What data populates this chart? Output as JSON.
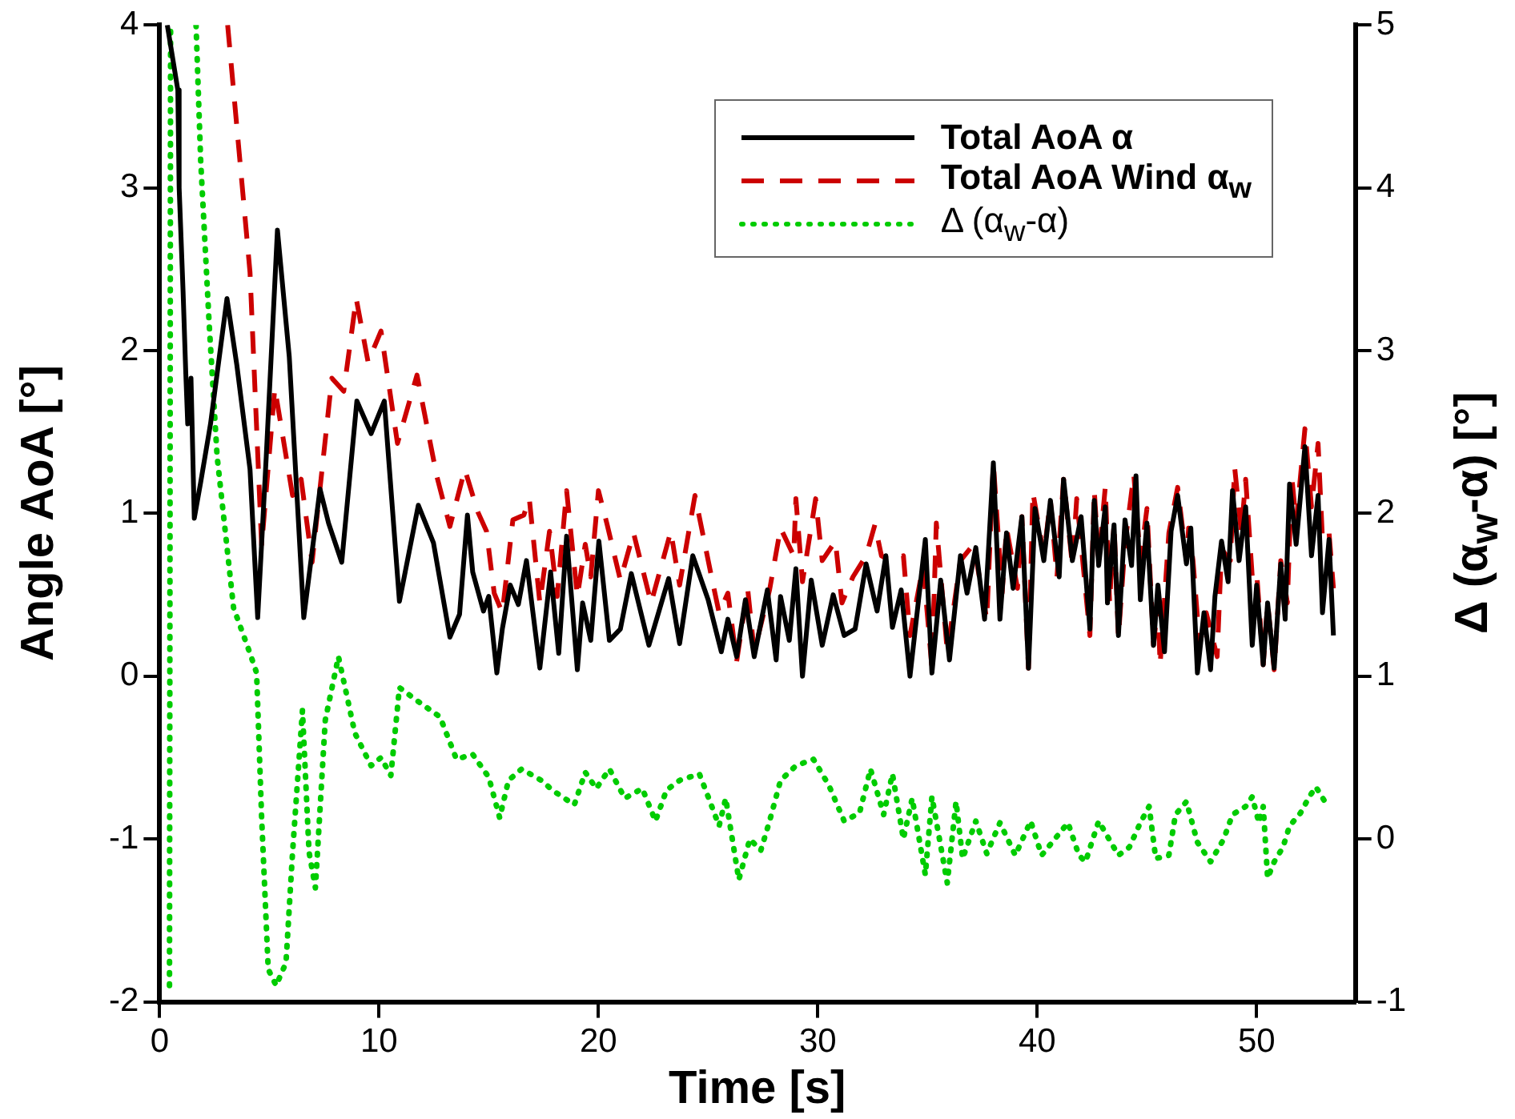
{
  "chart_data": {
    "type": "line",
    "xlabel": "Time [s]",
    "ylabel": "Angle AoA [°]",
    "y2label": "Δ (α$_{w}$-α) [°]",
    "xlim": [
      0,
      54.5
    ],
    "xticks": [
      0,
      10,
      20,
      30,
      40,
      50
    ],
    "ylim": [
      -2,
      4
    ],
    "yticks": [
      -2,
      -1,
      0,
      1,
      2,
      3,
      4
    ],
    "y2lim": [
      -1,
      5
    ],
    "y2ticks": [
      -1,
      0,
      1,
      2,
      3,
      4,
      5
    ],
    "legend": "top right",
    "series": [
      {
        "name": "Total AoA α",
        "color": "#000000",
        "line_style": "solid",
        "axis": "y",
        "x": [
          0.35,
          0.83,
          0.89,
          1.07,
          1.19,
          1.28,
          1.43,
          1.58,
          1.87,
          2.32,
          3.07,
          3.52,
          4.12,
          4.47,
          4.86,
          5.37,
          5.91,
          6.57,
          7.31,
          7.7,
          8.3,
          8.99,
          9.64,
          10.24,
          10.93,
          11.79,
          12.48,
          13.23,
          13.67,
          14.03,
          14.27,
          14.76,
          15.0,
          15.37,
          15.62,
          15.98,
          16.35,
          16.72,
          17.33,
          17.82,
          18.19,
          18.55,
          19.04,
          19.28,
          19.65,
          20.02,
          20.5,
          21.0,
          21.5,
          22.3,
          23.2,
          23.7,
          24.3,
          25.0,
          25.6,
          25.9,
          26.3,
          26.7,
          27.1,
          27.7,
          28.1,
          28.3,
          28.7,
          29.0,
          29.3,
          29.7,
          30.2,
          30.7,
          31.2,
          31.7,
          32.2,
          32.7,
          33.1,
          33.4,
          33.8,
          34.2,
          34.9,
          35.2,
          35.6,
          36.0,
          36.5,
          36.8,
          37.2,
          37.6,
          38.0,
          38.3,
          38.6,
          38.9,
          39.3,
          39.6,
          39.9,
          40.3,
          40.6,
          41.0,
          41.2,
          41.6,
          42.0,
          42.4,
          42.6,
          42.8,
          43.1,
          43.2,
          43.5,
          43.7,
          44.0,
          44.3,
          44.5,
          44.7,
          45.0,
          45.3,
          45.5,
          45.8,
          46.1,
          46.4,
          46.8,
          47.0,
          47.3,
          47.6,
          47.9,
          48.1,
          48.4,
          48.7,
          48.9,
          49.2,
          49.5,
          49.8,
          50.0,
          50.3,
          50.5,
          50.8,
          51.1,
          51.3,
          51.5,
          51.8,
          52.2,
          52.5,
          52.8,
          53.0,
          53.3,
          53.5
        ],
        "values": [
          4.0,
          3.6,
          3.0,
          2.36,
          1.87,
          1.55,
          1.83,
          0.97,
          1.19,
          1.55,
          2.32,
          1.91,
          1.27,
          0.36,
          1.35,
          2.74,
          1.96,
          0.36,
          1.15,
          0.94,
          0.7,
          1.69,
          1.49,
          1.69,
          0.46,
          1.05,
          0.82,
          0.24,
          0.38,
          0.99,
          0.64,
          0.4,
          0.49,
          0.02,
          0.29,
          0.56,
          0.44,
          0.71,
          0.05,
          0.64,
          0.14,
          0.86,
          0.04,
          0.45,
          0.22,
          0.83,
          0.22,
          0.29,
          0.63,
          0.19,
          0.6,
          0.2,
          0.74,
          0.47,
          0.15,
          0.35,
          0.12,
          0.47,
          0.12,
          0.53,
          0.1,
          0.49,
          0.22,
          0.66,
          0.0,
          0.59,
          0.19,
          0.5,
          0.25,
          0.29,
          0.69,
          0.4,
          0.74,
          0.3,
          0.53,
          0.0,
          0.84,
          0.02,
          0.59,
          0.1,
          0.74,
          0.51,
          0.79,
          0.35,
          1.31,
          0.35,
          0.88,
          0.54,
          0.98,
          0.05,
          1.03,
          0.71,
          1.08,
          0.61,
          1.21,
          0.71,
          0.98,
          0.29,
          1.08,
          0.68,
          1.04,
          0.45,
          0.93,
          0.25,
          0.96,
          0.68,
          1.23,
          0.47,
          0.94,
          0.19,
          0.56,
          0.15,
          0.89,
          1.11,
          0.69,
          0.91,
          0.02,
          0.39,
          0.04,
          0.49,
          0.83,
          0.58,
          1.14,
          0.71,
          1.04,
          0.19,
          0.56,
          0.07,
          0.45,
          0.05,
          0.69,
          0.35,
          1.18,
          0.81,
          1.41,
          0.74,
          1.11,
          0.39,
          0.84,
          0.25
        ]
      },
      {
        "name": "Total AoA Wind α$_{w}$",
        "color": "#cc0000",
        "line_style": "dashed",
        "axis": "y",
        "x": [
          3.1,
          4.12,
          4.65,
          5.25,
          6.06,
          6.45,
          6.95,
          7.85,
          8.39,
          8.96,
          9.5,
          10.09,
          10.84,
          11.73,
          12.63,
          13.23,
          13.91,
          14.5,
          14.9,
          15.25,
          15.62,
          16.1,
          16.6,
          16.85,
          17.33,
          17.77,
          18.12,
          18.55,
          19.04,
          19.4,
          19.65,
          20.0,
          20.4,
          21.0,
          21.6,
          22.4,
          23.3,
          23.7,
          24.4,
          25.2,
          25.5,
          25.9,
          26.3,
          26.8,
          27.1,
          27.8,
          28.3,
          28.9,
          29.0,
          29.3,
          29.9,
          30.2,
          30.8,
          31.1,
          31.6,
          32.2,
          32.6,
          32.9,
          33.3,
          33.9,
          34.2,
          34.8,
          35.2,
          35.4,
          35.9,
          36.5,
          37.1,
          37.7,
          38.0,
          38.4,
          38.6,
          39.1,
          39.3,
          39.6,
          39.8,
          40.3,
          40.6,
          40.9,
          41.2,
          41.6,
          41.8,
          42.0,
          42.4,
          42.6,
          42.8,
          43.1,
          43.3,
          43.5,
          43.7,
          44.0,
          44.4,
          44.7,
          45.0,
          45.3,
          45.5,
          45.6,
          46.0,
          46.4,
          46.8,
          46.9,
          47.1,
          47.4,
          47.7,
          48.2,
          48.4,
          48.8,
          49.0,
          49.3,
          49.5,
          49.8,
          50.0,
          50.3,
          50.5,
          50.8,
          51.1,
          51.4,
          51.6,
          51.8,
          52.2,
          52.5,
          52.8,
          53.0,
          53.3,
          53.5
        ],
        "values": [
          4.0,
          2.48,
          0.8,
          1.77,
          1.11,
          1.21,
          0.7,
          1.83,
          1.75,
          2.32,
          1.93,
          2.12,
          1.43,
          1.85,
          1.23,
          0.92,
          1.27,
          1.01,
          0.89,
          0.51,
          0.39,
          0.96,
          0.99,
          1.09,
          0.45,
          0.89,
          0.49,
          1.14,
          0.49,
          0.81,
          0.61,
          1.14,
          0.93,
          0.59,
          0.88,
          0.45,
          0.89,
          0.56,
          1.11,
          0.58,
          0.39,
          0.51,
          0.09,
          0.54,
          0.15,
          0.53,
          0.91,
          0.74,
          1.09,
          0.58,
          1.09,
          0.71,
          0.83,
          0.45,
          0.61,
          0.74,
          0.93,
          0.74,
          0.71,
          0.74,
          0.25,
          0.68,
          0.05,
          0.94,
          0.15,
          0.71,
          0.81,
          0.35,
          1.31,
          0.51,
          0.91,
          0.54,
          0.98,
          0.05,
          1.13,
          0.74,
          1.08,
          0.61,
          1.21,
          0.68,
          1.09,
          0.81,
          0.25,
          1.14,
          0.71,
          1.16,
          0.45,
          0.94,
          0.24,
          0.81,
          1.24,
          0.71,
          1.03,
          0.19,
          0.45,
          0.07,
          0.88,
          1.16,
          0.71,
          0.91,
          0.71,
          0.19,
          0.39,
          0.12,
          0.78,
          0.71,
          1.28,
          0.88,
          1.21,
          0.61,
          0.64,
          0.07,
          0.45,
          0.04,
          0.71,
          0.45,
          1.23,
          0.94,
          1.52,
          1.04,
          1.43,
          0.84,
          0.88,
          0.54
        ]
      },
      {
        "name": "Δ (α$_{w}$-α)",
        "color": "#00cc00",
        "line_style": "dotted",
        "axis": "y2",
        "x": [
          0.45,
          0.5,
          1.0,
          1.66,
          1.87,
          2.26,
          2.62,
          3.37,
          4.12,
          4.42,
          4.65,
          4.95,
          5.31,
          5.76,
          6.06,
          6.51,
          6.81,
          7.1,
          7.55,
          8.15,
          8.9,
          9.64,
          10.09,
          10.54,
          10.93,
          11.73,
          12.78,
          13.53,
          14.27,
          15.0,
          15.5,
          15.9,
          16.5,
          17.4,
          17.9,
          18.9,
          19.4,
          19.9,
          20.5,
          21.2,
          22.0,
          22.6,
          23.1,
          23.7,
          24.6,
          25.0,
          25.5,
          25.8,
          26.4,
          26.9,
          27.4,
          27.8,
          28.3,
          29.0,
          29.8,
          30.5,
          31.2,
          31.9,
          32.4,
          33.0,
          33.4,
          33.9,
          34.3,
          34.9,
          35.2,
          35.9,
          36.3,
          36.6,
          37.2,
          37.7,
          38.3,
          39.0,
          39.7,
          40.2,
          40.5,
          41.4,
          41.9,
          42.2,
          42.8,
          43.7,
          44.2,
          44.7,
          45.1,
          45.4,
          46.0,
          46.3,
          46.8,
          47.3,
          47.9,
          48.5,
          48.9,
          49.5,
          49.8,
          50.1,
          50.3,
          50.5,
          50.8,
          51.2,
          51.5,
          52.0,
          52.4,
          52.7,
          53.2
        ],
        "values": [
          -0.9,
          5.0,
          null,
          5.0,
          4.17,
          3.16,
          2.35,
          1.42,
          1.14,
          1.02,
          0.13,
          -0.8,
          -0.9,
          -0.76,
          -0.08,
          0.79,
          -0.08,
          -0.3,
          0.73,
          1.12,
          0.65,
          0.45,
          0.5,
          0.39,
          0.93,
          0.85,
          0.75,
          0.49,
          0.52,
          0.38,
          0.13,
          0.36,
          0.43,
          0.36,
          0.3,
          0.21,
          0.41,
          0.31,
          0.43,
          0.25,
          0.31,
          0.11,
          0.3,
          0.36,
          0.4,
          0.26,
          0.08,
          0.25,
          -0.25,
          0.0,
          -0.07,
          0.11,
          0.36,
          0.45,
          0.49,
          0.33,
          0.11,
          0.16,
          0.43,
          0.15,
          0.4,
          0.0,
          0.25,
          -0.22,
          0.26,
          -0.27,
          0.23,
          -0.12,
          0.11,
          -0.09,
          0.1,
          -0.1,
          0.11,
          -0.1,
          -0.05,
          0.1,
          -0.1,
          -0.14,
          0.11,
          -0.1,
          -0.05,
          0.1,
          0.2,
          -0.12,
          -0.1,
          0.15,
          0.23,
          -0.02,
          -0.14,
          0.0,
          0.15,
          0.2,
          0.26,
          0.1,
          0.2,
          -0.24,
          -0.14,
          -0.05,
          0.08,
          0.16,
          0.26,
          0.32,
          0.21
        ]
      }
    ]
  }
}
